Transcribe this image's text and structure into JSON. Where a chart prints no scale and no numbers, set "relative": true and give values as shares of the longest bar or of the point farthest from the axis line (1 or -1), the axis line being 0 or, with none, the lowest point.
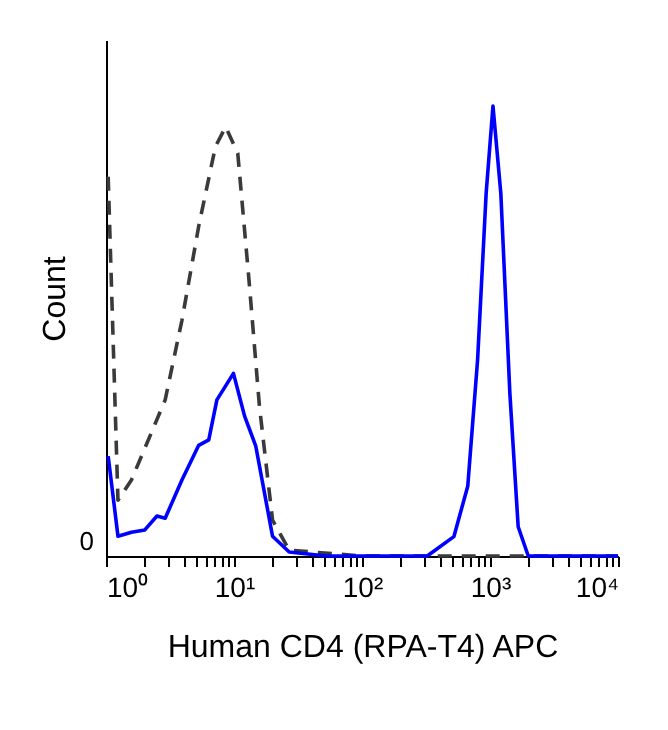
{
  "chart_data": {
    "type": "line",
    "relative": true,
    "xlabel": "Human CD4 (RPA-T4) APC",
    "ylabel": "Count",
    "log": "x",
    "xlim": [
      1,
      10000
    ],
    "xticks": [
      {
        "value": 1,
        "label": "10⁰"
      },
      {
        "value": 2,
        "label": null
      },
      {
        "value": 3,
        "label": null
      },
      {
        "value": 4,
        "label": null
      },
      {
        "value": 5,
        "label": null
      },
      {
        "value": 6,
        "label": null
      },
      {
        "value": 7,
        "label": null
      },
      {
        "value": 8,
        "label": null
      },
      {
        "value": 9,
        "label": null
      },
      {
        "value": 10,
        "label": "10¹"
      },
      {
        "value": 20,
        "label": null
      },
      {
        "value": 30,
        "label": null
      },
      {
        "value": 40,
        "label": null
      },
      {
        "value": 50,
        "label": null
      },
      {
        "value": 60,
        "label": null
      },
      {
        "value": 70,
        "label": null
      },
      {
        "value": 80,
        "label": null
      },
      {
        "value": 90,
        "label": null
      },
      {
        "value": 100,
        "label": "10²"
      },
      {
        "value": 200,
        "label": null
      },
      {
        "value": 300,
        "label": null
      },
      {
        "value": 400,
        "label": null
      },
      {
        "value": 500,
        "label": null
      },
      {
        "value": 600,
        "label": null
      },
      {
        "value": 700,
        "label": null
      },
      {
        "value": 800,
        "label": null
      },
      {
        "value": 900,
        "label": null
      },
      {
        "value": 1000,
        "label": "10³"
      },
      {
        "value": 2000,
        "label": null
      },
      {
        "value": 3000,
        "label": null
      },
      {
        "value": 4000,
        "label": null
      },
      {
        "value": 5000,
        "label": null
      },
      {
        "value": 6000,
        "label": null
      },
      {
        "value": 7000,
        "label": null
      },
      {
        "value": 8000,
        "label": null
      },
      {
        "value": 9000,
        "label": null
      },
      {
        "value": 10000,
        "label": "10⁴"
      }
    ],
    "annotations": [
      "0"
    ],
    "grid": false,
    "marker": "none",
    "series": [
      {
        "color": "#3a3a3a",
        "line_style": "dashed",
        "x": [
          1.04,
          1.24,
          1.58,
          2.9,
          3.92,
          5.3,
          7.16,
          8.6,
          10.7,
          13.1,
          15.8,
          20,
          27,
          100,
          1000,
          10000
        ],
        "values": [
          0.843,
          0.124,
          0.169,
          0.347,
          0.524,
          0.733,
          0.91,
          0.954,
          0.895,
          0.613,
          0.333,
          0.08,
          0.013,
          0,
          0,
          0
        ]
      },
      {
        "color": "#0000ff",
        "line_style": "solid",
        "x": [
          1.04,
          1.24,
          1.58,
          2.01,
          2.5,
          2.9,
          3.92,
          5.3,
          6.35,
          7.35,
          9.9,
          12.1,
          14.8,
          20,
          27,
          52.7,
          323,
          522,
          670,
          800,
          933,
          1055,
          1215,
          1430,
          1660,
          1990,
          10000
        ],
        "values": [
          0.222,
          0.044,
          0.053,
          0.058,
          0.089,
          0.084,
          0.169,
          0.246,
          0.258,
          0.347,
          0.406,
          0.311,
          0.244,
          0.044,
          0.009,
          0,
          0,
          0.043,
          0.155,
          0.436,
          0.806,
          1,
          0.806,
          0.361,
          0.065,
          0,
          0
        ]
      }
    ]
  }
}
